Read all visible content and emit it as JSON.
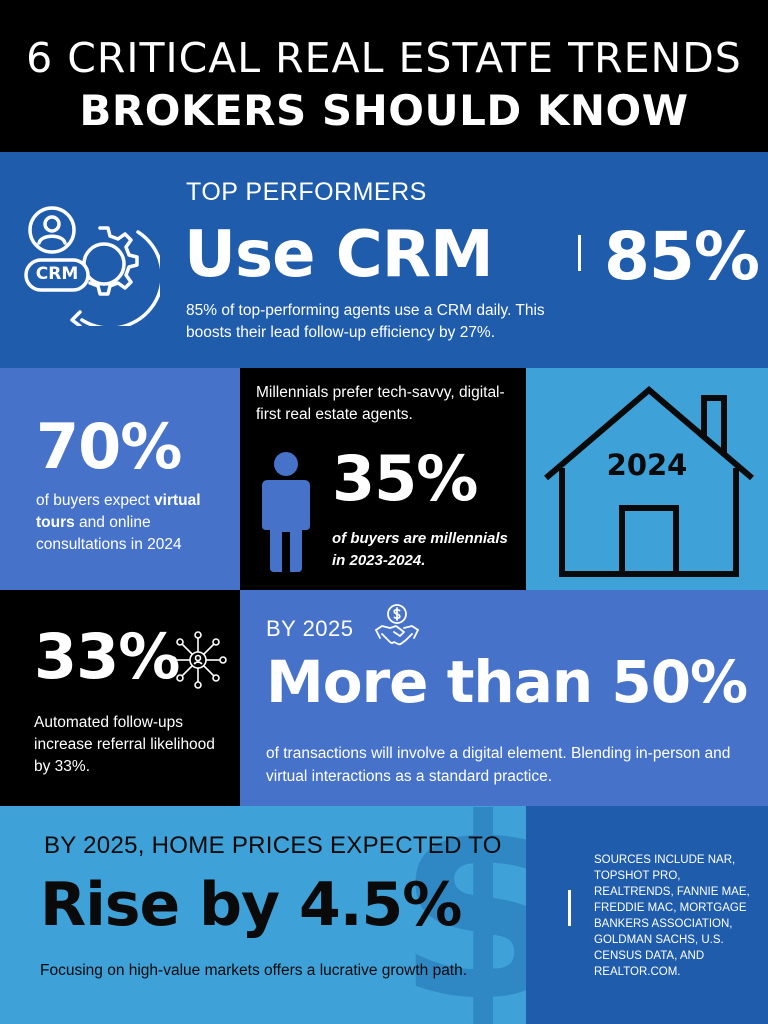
{
  "header": {
    "line1": "6 CRITICAL REAL ESTATE TRENDS",
    "line2": "BROKERS SHOULD KNOW"
  },
  "crm": {
    "kicker": "TOP PERFORMERS",
    "headline": "Use CRM",
    "stat": "85%",
    "description": "85% of top-performing agents use a CRM daily. This boosts their lead follow-up efficiency by 27%.",
    "icon_label": "CRM",
    "icon": "crm-gear-person-icon"
  },
  "virtual_tours": {
    "stat": "70%",
    "desc_pre": "of buyers expect ",
    "desc_bold": "virtual tours",
    "desc_post": " and online consultations in 2024"
  },
  "millennials": {
    "intro": "Millennials prefer tech-savvy, digital-first real estate agents.",
    "stat": "35%",
    "description": "of buyers are millennials in 2023-2024.",
    "icon": "person-icon"
  },
  "house": {
    "year": "2024",
    "icon": "house-icon"
  },
  "referral": {
    "stat": "33%",
    "description": "Automated follow-ups increase referral likelihood by 33%.",
    "icon": "network-icon"
  },
  "digital": {
    "kicker": "BY 2025",
    "headline": "More than 50%",
    "description": "of transactions will involve a digital element. Blending in-person and virtual interactions as a standard practice.",
    "icon": "handshake-dollar-icon"
  },
  "prices": {
    "kicker": "BY 2025, HOME PRICES EXPECTED TO",
    "headline": "Rise by 4.5%",
    "description": "Focusing on high-value markets offers a lucrative growth path.",
    "watermark": "$"
  },
  "sources": {
    "text": "SOURCES INCLUDE NAR, TOPSHOT PRO, REALTRENDS, FANNIE MAE, FREDDIE MAC, MORTGAGE BANKERS ASSOCIATION, GOLDMAN SACHS, U.S. CENSUS DATA, AND REALTOR.COM."
  },
  "colors": {
    "dark_blue": "#1f5cac",
    "mid_blue": "#4673c9",
    "light_blue": "#3ea1d8",
    "black": "#000000",
    "white": "#ffffff"
  }
}
